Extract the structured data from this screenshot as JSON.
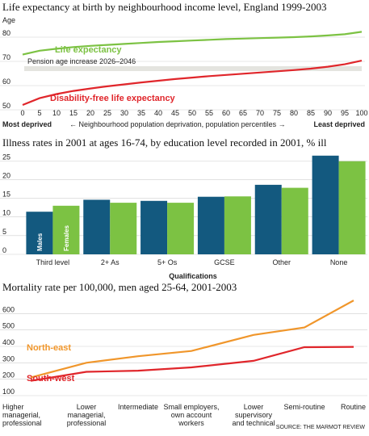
{
  "chart_data": [
    {
      "type": "line",
      "title": "Life expectancy at birth by neighbourhood income level, England 1999-2003",
      "ylabel": "Age",
      "ylim": [
        50,
        84
      ],
      "yticks": [
        50,
        60,
        70,
        80
      ],
      "xlim": [
        0,
        100
      ],
      "xticks": [
        0,
        5,
        10,
        15,
        20,
        25,
        30,
        35,
        40,
        45,
        50,
        55,
        60,
        65,
        70,
        75,
        80,
        85,
        90,
        95,
        100
      ],
      "xlabel_left": "Most deprived",
      "xlabel_middle": "← Neighbourhood population deprivation, population percentiles →",
      "xlabel_right": "Least deprived",
      "band": {
        "label": "Pension age increase 2026–2046",
        "from": 66,
        "to": 68,
        "color": "#e4e4df"
      },
      "series": [
        {
          "name": "Life expectancy",
          "color": "#7cc243",
          "x": [
            0,
            5,
            10,
            15,
            20,
            25,
            30,
            35,
            40,
            45,
            50,
            55,
            60,
            65,
            70,
            75,
            80,
            85,
            90,
            95,
            100
          ],
          "y": [
            72.8,
            74.4,
            75.2,
            75.9,
            76.4,
            76.8,
            77.2,
            77.6,
            78.0,
            78.3,
            78.6,
            78.9,
            79.2,
            79.4,
            79.6,
            79.8,
            80.0,
            80.3,
            80.7,
            81.2,
            82.2
          ]
        },
        {
          "name": "Disability-free life expectancy",
          "color": "#e0262b",
          "x": [
            0,
            5,
            10,
            15,
            20,
            25,
            30,
            35,
            40,
            45,
            50,
            55,
            60,
            65,
            70,
            75,
            80,
            85,
            90,
            95,
            100
          ],
          "y": [
            52.0,
            54.8,
            56.5,
            57.8,
            58.8,
            59.7,
            60.5,
            61.3,
            62.0,
            62.7,
            63.3,
            63.9,
            64.4,
            64.9,
            65.4,
            65.9,
            66.4,
            67.0,
            67.8,
            68.8,
            70.3
          ]
        }
      ]
    },
    {
      "type": "bar",
      "title": "Illness rates in 2001 at ages 16-74, by education level recorded in 2001, % ill",
      "categories": [
        "Third level",
        "2+ As",
        "5+ Os",
        "GCSE",
        "Other",
        "None"
      ],
      "xlabel": "Qualifications",
      "ylim": [
        0,
        27
      ],
      "yticks": [
        0,
        5,
        10,
        15,
        20,
        25
      ],
      "series": [
        {
          "name": "Males",
          "color": "#13597f",
          "values": [
            11.4,
            14.6,
            14.3,
            15.4,
            18.6,
            26.4
          ]
        },
        {
          "name": "Females",
          "color": "#7cc243",
          "values": [
            13.0,
            13.8,
            13.8,
            15.5,
            17.8,
            24.9
          ]
        }
      ]
    },
    {
      "type": "line",
      "title": "Mortality rate per 100,000, men aged 25-64, 2001-2003",
      "categories": [
        "Higher managerial, professional",
        "Lower managerial, professional",
        "Intermediate",
        "Small employers, own account workers",
        "Lower supervisory and technical",
        "Semi-routine",
        "Routine"
      ],
      "category_lines": [
        [
          "Higher",
          "managerial,",
          "professional"
        ],
        [
          "Lower",
          "managerial,",
          "professional"
        ],
        [
          "Intermediate"
        ],
        [
          "Small employers,",
          "own account",
          "workers"
        ],
        [
          "Lower",
          "supervisory",
          "and technical"
        ],
        [
          "Semi-routine"
        ],
        [
          "Routine"
        ]
      ],
      "ylim": [
        100,
        700
      ],
      "yticks": [
        100,
        200,
        300,
        400,
        500,
        600
      ],
      "series": [
        {
          "name": "North-east",
          "color": "#f0962b",
          "values": [
            210,
            300,
            340,
            372,
            470,
            515,
            680
          ]
        },
        {
          "name": "South-west",
          "color": "#e0262b",
          "values": [
            190,
            245,
            252,
            272,
            312,
            395,
            397
          ]
        }
      ],
      "source": "SOURCE: THE MARMOT REVIEW"
    }
  ]
}
